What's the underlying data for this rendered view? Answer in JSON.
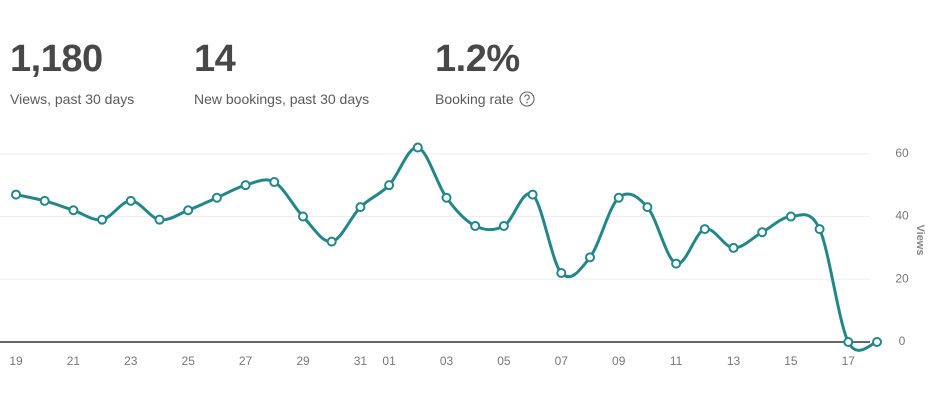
{
  "stats": [
    {
      "value": "1,180",
      "label": "Views, past 30 days"
    },
    {
      "value": "14",
      "label": "New bookings, past 30 days"
    },
    {
      "value": "1.2%",
      "label": "Booking rate"
    }
  ],
  "chart_data": {
    "type": "line",
    "y_label": "Views",
    "categories": [
      "19",
      null,
      "21",
      null,
      "23",
      null,
      "25",
      null,
      "27",
      null,
      "29",
      null,
      "31",
      "01",
      null,
      "03",
      null,
      "05",
      null,
      "07",
      null,
      "09",
      null,
      "11",
      null,
      "13",
      null,
      "15",
      null,
      "17",
      null
    ],
    "series": [
      {
        "name": "Views",
        "color": "#23878a",
        "values": [
          47,
          45,
          42,
          39,
          45,
          39,
          42,
          46,
          50,
          51,
          40,
          32,
          43,
          50,
          62,
          46,
          37,
          37,
          47,
          22,
          27,
          46,
          43,
          25,
          36,
          30,
          35,
          40,
          36,
          0,
          0
        ]
      }
    ],
    "ylim": [
      0,
      66
    ],
    "yticks": [
      0,
      20,
      40,
      60
    ],
    "grid": true
  }
}
